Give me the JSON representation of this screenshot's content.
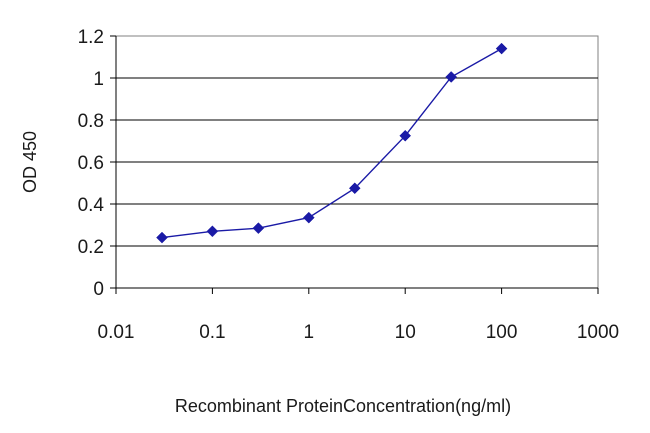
{
  "chart_data": {
    "type": "line",
    "x_scale": "log",
    "xlabel": "Recombinant ProteinConcentration(ng/ml)",
    "ylabel": "OD 450",
    "xlim": [
      0.01,
      1000
    ],
    "ylim": [
      0,
      1.2
    ],
    "x_ticks": [
      0.01,
      0.1,
      1,
      10,
      100,
      1000
    ],
    "x_tick_labels": [
      "0.01",
      "0.1",
      "1",
      "10",
      "100",
      "1000"
    ],
    "y_ticks": [
      0,
      0.2,
      0.4,
      0.6,
      0.8,
      1,
      1.2
    ],
    "y_tick_labels": [
      "0",
      "0.2",
      "0.4",
      "0.6",
      "0.8",
      "1",
      "1.2"
    ],
    "grid": "horizontal",
    "legend": "none",
    "series": [
      {
        "color": "#1a1aa6",
        "marker": "diamond",
        "x": [
          0.03,
          0.1,
          0.3,
          1,
          3,
          10,
          30,
          100
        ],
        "y": [
          0.24,
          0.27,
          0.285,
          0.335,
          0.475,
          0.725,
          1.005,
          1.14
        ]
      }
    ]
  }
}
